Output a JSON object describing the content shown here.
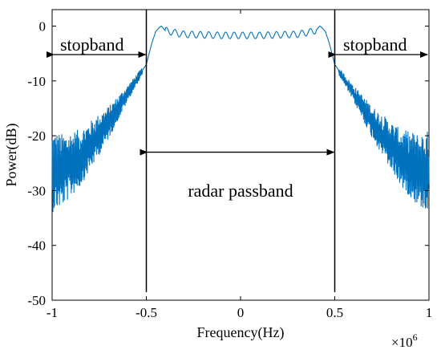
{
  "chart_data": {
    "type": "line",
    "xlabel": "Frequency(Hz)",
    "ylabel": "Power(dB)",
    "x_multiplier": "×10",
    "x_multiplier_exp": "6",
    "xlim": [
      -1,
      1
    ],
    "ylim": [
      -50,
      3
    ],
    "xticks": [
      "-1",
      "-0.5",
      "0",
      "0.5",
      "1"
    ],
    "xtick_values": [
      -1,
      -0.5,
      0,
      0.5,
      1
    ],
    "yticks": [
      "0",
      "-10",
      "-20",
      "-30",
      "-40",
      "-50"
    ],
    "ytick_values": [
      0,
      -10,
      -20,
      -30,
      -40,
      -50
    ],
    "grid": false,
    "series_color": "#0072BD",
    "series": [
      {
        "envelope": {
          "x": [
            -1.0,
            -0.95,
            -0.9,
            -0.85,
            -0.8,
            -0.75,
            -0.7,
            -0.65,
            -0.6,
            -0.55,
            -0.5,
            -0.47,
            -0.45,
            -0.43,
            -0.42,
            -0.4,
            -0.35,
            -0.3,
            -0.2,
            -0.1,
            0,
            0.1,
            0.2,
            0.3,
            0.35,
            0.4,
            0.42,
            0.43,
            0.45,
            0.47,
            0.5,
            0.55,
            0.6,
            0.65,
            0.7,
            0.75,
            0.8,
            0.85,
            0.9,
            0.95,
            1.0
          ],
          "y": [
            -25,
            -25,
            -24,
            -23,
            -21,
            -19,
            -17,
            -14.5,
            -12,
            -9.5,
            -7,
            -3,
            -1,
            -0.2,
            0,
            -0.8,
            -1.2,
            -1.5,
            -1.6,
            -1.7,
            -1.7,
            -1.7,
            -1.6,
            -1.5,
            -1.2,
            -0.8,
            0,
            -0.2,
            -1,
            -3,
            -7,
            -9.5,
            -12,
            -14.5,
            -17,
            -19,
            -21,
            -23,
            -24,
            -25,
            -25
          ]
        },
        "ripple_depth_dB": {
          "x": [
            -1.0,
            -0.9,
            -0.8,
            -0.7,
            -0.6,
            -0.5,
            0.5,
            0.6,
            0.7,
            0.8,
            0.9,
            1.0
          ],
          "y": [
            15,
            12,
            9,
            6,
            3,
            1,
            1,
            3,
            6,
            9,
            12,
            15
          ]
        },
        "passband_ripple_dB": 1.2
      }
    ],
    "band_edges": [
      -0.5,
      0.5
    ],
    "annotations": {
      "stopband_left": "stopband",
      "stopband_right": "stopband",
      "passband": "radar passband"
    }
  }
}
